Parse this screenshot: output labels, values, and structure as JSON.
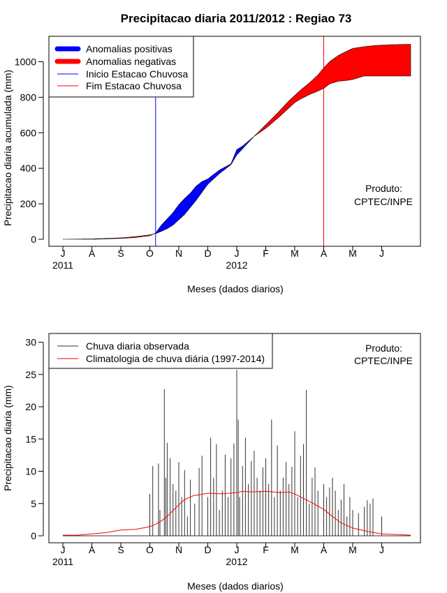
{
  "chart_data": [
    {
      "type": "area",
      "title": "Precipitacao diaria 2011/2012 : Regiao 73",
      "xlabel": "Meses (dados diarios)",
      "ylabel": "Precipitacao diaria acumulada (mm)",
      "ylim": [
        0,
        1100
      ],
      "yticks": [
        0,
        200,
        400,
        600,
        800,
        1000
      ],
      "month_ticks": [
        "J",
        "A",
        "S",
        "O",
        "N",
        "D",
        "J",
        "F",
        "M",
        "A",
        "M",
        "J"
      ],
      "year_labels": [
        "2011",
        "2012"
      ],
      "annotation": [
        "Produto:",
        "CPTEC/INPE"
      ],
      "legend": [
        {
          "label": "Anomalias positivas",
          "color": "#0000ff",
          "kind": "thick"
        },
        {
          "label": "Anomalias negativas",
          "color": "#ff0000",
          "kind": "thick"
        },
        {
          "label": "Inicio Estacao Chuvosa",
          "color": "#0000ff",
          "kind": "thin"
        },
        {
          "label": "Fim Estacao Chuvosa",
          "color": "#ff0000",
          "kind": "thin"
        }
      ],
      "rainy_season_start_month": 3.2,
      "rainy_season_end_month": 9.0,
      "series": [
        {
          "name": "Precipitacao observada acumulada",
          "x_month": [
            0,
            1,
            2,
            2.5,
            3,
            3.2,
            3.4,
            3.6,
            3.8,
            4,
            4.2,
            4.4,
            4.6,
            4.8,
            5,
            5.4,
            5.8,
            6,
            6.2,
            6.6,
            7,
            7.4,
            7.8,
            8,
            8.2,
            8.5,
            8.8,
            9,
            9.2,
            9.5,
            9.8,
            10,
            10.4,
            10.8,
            11.2,
            11.6,
            12
          ],
          "values": [
            0,
            0,
            5,
            10,
            20,
            35,
            80,
            115,
            150,
            195,
            230,
            260,
            300,
            325,
            340,
            390,
            425,
            505,
            525,
            580,
            625,
            680,
            740,
            770,
            790,
            815,
            835,
            850,
            875,
            890,
            895,
            900,
            920,
            920,
            920,
            920,
            920
          ]
        },
        {
          "name": "Climatologia acumulada",
          "x_month": [
            0,
            1,
            2,
            2.5,
            3,
            3.2,
            3.4,
            3.6,
            3.8,
            4,
            4.2,
            4.4,
            4.6,
            4.8,
            5,
            5.4,
            5.8,
            6,
            6.2,
            6.6,
            7,
            7.4,
            7.8,
            8,
            8.2,
            8.5,
            8.8,
            9,
            9.2,
            9.5,
            9.8,
            10,
            10.4,
            10.8,
            11.2,
            11.6,
            12
          ],
          "values": [
            0,
            2,
            8,
            15,
            25,
            32,
            45,
            60,
            80,
            110,
            140,
            180,
            220,
            265,
            310,
            370,
            420,
            475,
            510,
            580,
            645,
            710,
            780,
            810,
            840,
            880,
            925,
            965,
            1000,
            1035,
            1060,
            1075,
            1085,
            1092,
            1095,
            1097,
            1098
          ]
        }
      ]
    },
    {
      "type": "bar",
      "xlabel": "Meses (dados diarios)",
      "ylabel": "Precipitacao diaria (mm)",
      "ylim": [
        0,
        30
      ],
      "yticks": [
        0,
        5,
        10,
        15,
        20,
        25,
        30
      ],
      "month_ticks": [
        "J",
        "A",
        "S",
        "O",
        "N",
        "D",
        "J",
        "F",
        "M",
        "A",
        "M",
        "J"
      ],
      "year_labels": [
        "2011",
        "2012"
      ],
      "annotation": [
        "Produto:",
        "CPTEC/INPE"
      ],
      "legend": [
        {
          "label": "Chuva diaria observada",
          "color": "#333333",
          "kind": "thin"
        },
        {
          "label": "Climatologia de chuva diária (1997-2014)",
          "color": "#ff0000",
          "kind": "thin"
        }
      ],
      "series": [
        {
          "name": "Chuva diaria observada",
          "x_month": [
            3.0,
            3.1,
            3.3,
            3.35,
            3.5,
            3.55,
            3.6,
            3.7,
            3.8,
            3.9,
            4.0,
            4.1,
            4.2,
            4.3,
            4.4,
            4.55,
            4.7,
            4.8,
            5.0,
            5.1,
            5.2,
            5.3,
            5.4,
            5.5,
            5.6,
            5.7,
            5.8,
            5.9,
            6.0,
            6.05,
            6.1,
            6.2,
            6.3,
            6.4,
            6.5,
            6.6,
            6.7,
            6.8,
            6.9,
            7.0,
            7.1,
            7.2,
            7.3,
            7.4,
            7.5,
            7.6,
            7.7,
            7.8,
            7.9,
            8.0,
            8.1,
            8.2,
            8.3,
            8.4,
            8.5,
            8.6,
            8.7,
            8.8,
            9.0,
            9.1,
            9.2,
            9.3,
            9.4,
            9.5,
            9.6,
            9.7,
            9.8,
            9.9,
            10.0,
            10.2,
            10.4,
            10.5,
            10.6,
            10.7,
            11.0
          ],
          "values": [
            6.5,
            10.8,
            11.2,
            4.0,
            22.7,
            9.0,
            14.4,
            12.0,
            8.0,
            7.0,
            11.4,
            6.0,
            10.2,
            3.0,
            8.7,
            5.0,
            10.5,
            12.4,
            6.0,
            15.2,
            9.0,
            14.2,
            4.0,
            7.0,
            12.6,
            6.0,
            12.0,
            14.3,
            25.7,
            18.0,
            6.0,
            10.8,
            15.2,
            8.0,
            11.6,
            13.2,
            9.0,
            7.0,
            10.6,
            12.0,
            8.0,
            18.0,
            6.0,
            14.0,
            7.0,
            9.0,
            11.4,
            8.0,
            10.7,
            16.2,
            6.0,
            12.4,
            14.2,
            22.6,
            5.0,
            9.0,
            10.6,
            7.0,
            8.0,
            6.0,
            7.5,
            9.0,
            7.0,
            4.0,
            5.6,
            8.0,
            3.0,
            6.0,
            4.0,
            3.5,
            4.5,
            5.5,
            5.0,
            5.8,
            3.0
          ]
        },
        {
          "name": "Climatologia de chuva diária (1997-2014)",
          "x_month": [
            0,
            0.5,
            1,
            1.5,
            2,
            2.5,
            3,
            3.2,
            3.4,
            3.6,
            3.8,
            4,
            4.2,
            4.5,
            5,
            5.5,
            6,
            6.2,
            6.5,
            7,
            7.5,
            7.8,
            8,
            8.3,
            8.6,
            9,
            9.3,
            9.6,
            10,
            10.3,
            10.6,
            11,
            11.5,
            12
          ],
          "values": [
            0.1,
            0.1,
            0.3,
            0.5,
            0.9,
            1.0,
            1.4,
            1.8,
            2.3,
            3.0,
            3.9,
            4.8,
            5.6,
            6.2,
            6.6,
            6.5,
            6.7,
            6.9,
            6.8,
            6.9,
            6.7,
            6.8,
            6.5,
            5.8,
            5.1,
            4.1,
            3.0,
            2.0,
            1.2,
            0.9,
            0.6,
            0.3,
            0.2,
            0.1
          ]
        }
      ]
    }
  ]
}
